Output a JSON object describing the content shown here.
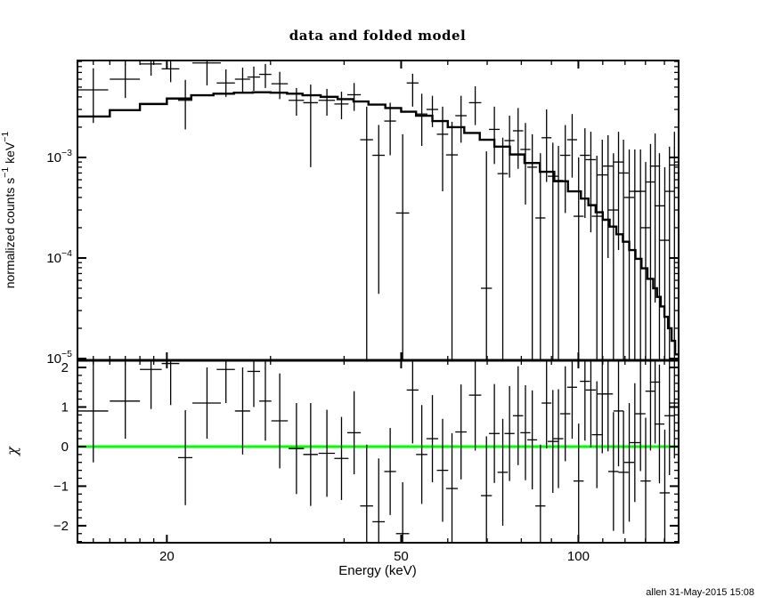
{
  "footer": {
    "watermark": "allen 31-May-2015 15:08"
  },
  "colors": {
    "foreground": "#000000",
    "background": "#ffffff",
    "model_line": "#000000",
    "zero_line_green": "#00ff00"
  },
  "chart_data": {
    "type": "line+scatter",
    "title": "data and folded model",
    "xlabel": "Energy (keV)",
    "xscale": "log",
    "xlim": [
      14.1,
      148
    ],
    "xticks": {
      "major": [
        {
          "v": 20,
          "label": "20"
        },
        {
          "v": 50,
          "label": "50"
        },
        {
          "v": 100,
          "label": "100"
        }
      ],
      "minor": [
        15,
        16,
        17,
        18,
        19,
        30,
        40,
        60,
        70,
        80,
        90,
        110,
        120,
        130,
        140
      ]
    },
    "panels": [
      {
        "name": "spectrum",
        "ylabel_parts": [
          {
            "t": "normalized counts s"
          },
          {
            "t": "−1",
            "sup": true
          },
          {
            "t": " keV"
          },
          {
            "t": "−1",
            "sup": true
          }
        ],
        "yscale": "log",
        "ylim": [
          9.6e-06,
          0.0092
        ],
        "yticks": {
          "major": [
            {
              "v": 0.001,
              "mant": "10",
              "exp": "−3"
            },
            {
              "v": 0.0001,
              "mant": "10",
              "exp": "−4"
            },
            {
              "v": 1e-05,
              "mant": "10",
              "exp": "−5"
            }
          ],
          "minor": [
            2e-05,
            3e-05,
            4e-05,
            5e-05,
            6e-05,
            7e-05,
            8e-05,
            9e-05,
            0.0002,
            0.0003,
            0.0004,
            0.0005,
            0.0006,
            0.0007,
            0.0008,
            0.0009,
            0.002,
            0.003,
            0.004,
            0.005,
            0.006,
            0.007,
            0.008,
            0.009
          ]
        },
        "model_step": {
          "edges": [
            14.1,
            16,
            18,
            20,
            22,
            24,
            26,
            28,
            30,
            32,
            34,
            36.5,
            39,
            41.5,
            44,
            47,
            50,
            53,
            56.5,
            60,
            64,
            68,
            72,
            76.5,
            81,
            86,
            91,
            96,
            101,
            104,
            107,
            110,
            113,
            116,
            119,
            122,
            125,
            128,
            131,
            134,
            136,
            138,
            140,
            142,
            144,
            146,
            148
          ],
          "values": [
            0.00255,
            0.00295,
            0.0034,
            0.00385,
            0.00415,
            0.0043,
            0.0044,
            0.00445,
            0.0044,
            0.0043,
            0.00415,
            0.004,
            0.0038,
            0.0036,
            0.00335,
            0.0031,
            0.00285,
            0.0026,
            0.0023,
            0.002,
            0.00175,
            0.0015,
            0.00128,
            0.00107,
            0.00088,
            0.00072,
            0.00058,
            0.00046,
            0.00039,
            0.000335,
            0.000285,
            0.00024,
            0.000205,
            0.000172,
            0.000145,
            0.00012,
            9.8e-05,
            7.9e-05,
            6.2e-05,
            5e-05,
            4.1e-05,
            3.3e-05,
            2.6e-05,
            2e-05,
            1.5e-05,
            1.1e-05
          ]
        }
      },
      {
        "name": "residuals",
        "ylabel": "χ",
        "yscale": "linear",
        "ylim": [
          -2.43,
          2.18
        ],
        "zero_line": 0,
        "yticks": {
          "major": [
            {
              "v": 2,
              "label": "2"
            },
            {
              "v": 1,
              "label": "1"
            },
            {
              "v": 0,
              "label": "0"
            },
            {
              "v": -1,
              "label": "−1"
            },
            {
              "v": -2,
              "label": "−2"
            }
          ],
          "minor": [
            -2.4,
            -2.2,
            -1.8,
            -1.6,
            -1.4,
            -1.2,
            -0.8,
            -0.6,
            -0.4,
            -0.2,
            0.2,
            0.4,
            0.6,
            0.8,
            1.2,
            1.4,
            1.6,
            1.8
          ]
        }
      }
    ],
    "bins": [
      {
        "e": 15.0,
        "ew": 0.9,
        "v": 0.0047,
        "vlo": 0.0022,
        "vhi": 0.0077,
        "chi": 0.9,
        "cerr": 1.3
      },
      {
        "e": 17.0,
        "ew": 1.0,
        "v": 0.006,
        "vlo": 0.0039,
        "vhi": 0.0085,
        "chi": 1.15,
        "cerr": 0.95
      },
      {
        "e": 18.8,
        "ew": 0.8,
        "v": 0.0085,
        "vlo": 0.0065,
        "vhi": 0.0094,
        "chi": 1.95,
        "cerr": 1.0
      },
      {
        "e": 20.3,
        "ew": 0.7,
        "v": 0.0076,
        "vlo": 0.0056,
        "vhi": 0.0094,
        "chi": 2.1,
        "cerr": 1.05
      },
      {
        "e": 21.5,
        "ew": 0.6,
        "v": 0.0037,
        "vlo": 0.0019,
        "vhi": 0.0059,
        "chi": -0.28,
        "cerr": 1.2
      },
      {
        "e": 23.4,
        "ew": 1.3,
        "v": 0.0087,
        "vlo": 0.0052,
        "vhi": 0.0094,
        "chi": 1.1,
        "cerr": 0.9
      },
      {
        "e": 25.2,
        "ew": 0.9,
        "v": 0.0055,
        "vlo": 0.004,
        "vhi": 0.0075,
        "chi": 1.95,
        "cerr": 0.85
      },
      {
        "e": 26.9,
        "ew": 0.8,
        "v": 0.006,
        "vlo": 0.0044,
        "vhi": 0.0078,
        "chi": 0.9,
        "cerr": 1.1
      },
      {
        "e": 28.1,
        "ew": 0.7,
        "v": 0.0063,
        "vlo": 0.0046,
        "vhi": 0.008,
        "chi": 1.9,
        "cerr": 0.9
      },
      {
        "e": 29.4,
        "ew": 0.7,
        "v": 0.0067,
        "vlo": 0.0049,
        "vhi": 0.0085,
        "chi": 1.15,
        "cerr": 1.0
      },
      {
        "e": 31.1,
        "ew": 1.0,
        "v": 0.0054,
        "vlo": 0.0038,
        "vhi": 0.0071,
        "chi": 0.65,
        "cerr": 1.2
      },
      {
        "e": 33.2,
        "ew": 1.0,
        "v": 0.0037,
        "vlo": 0.0026,
        "vhi": 0.0049,
        "chi": -0.05,
        "cerr": 1.15
      },
      {
        "e": 35.1,
        "ew": 1.0,
        "v": 0.0035,
        "vlo": 0.0008,
        "vhi": 0.0053,
        "chi": -0.2,
        "cerr": 1.3
      },
      {
        "e": 37.4,
        "ew": 1.2,
        "v": 0.0037,
        "vlo": 0.0026,
        "vhi": 0.0048,
        "chi": -0.17,
        "cerr": 1.1
      },
      {
        "e": 39.6,
        "ew": 1.1,
        "v": 0.0034,
        "vlo": 0.0024,
        "vhi": 0.0045,
        "chi": -0.3,
        "cerr": 1.05
      },
      {
        "e": 41.6,
        "ew": 1.1,
        "v": 0.0042,
        "vlo": 0.0029,
        "vhi": 0.0055,
        "chi": 0.35,
        "cerr": 1.05
      },
      {
        "e": 43.7,
        "ew": 1.1,
        "v": 0.0015,
        "vlo": 5e-06,
        "vhi": 0.0032,
        "chi": -1.5,
        "cerr": 1.55
      },
      {
        "e": 45.8,
        "ew": 1.1,
        "v": 0.00105,
        "vlo": 4.4e-05,
        "vhi": 0.0021,
        "chi": -1.9,
        "cerr": 1.6
      },
      {
        "e": 47.9,
        "ew": 1.1,
        "v": 0.0023,
        "vlo": 0.00105,
        "vhi": 0.0035,
        "chi": -0.63,
        "cerr": 1.1
      },
      {
        "e": 50.3,
        "ew": 1.3,
        "v": 0.00028,
        "vlo": 5e-06,
        "vhi": 0.0017,
        "chi": -2.2,
        "cerr": 1.3
      },
      {
        "e": 52.3,
        "ew": 1.2,
        "v": 0.0055,
        "vlo": 0.0032,
        "vhi": 0.0068,
        "chi": 1.43,
        "cerr": 1.35
      },
      {
        "e": 54.2,
        "ew": 1.2,
        "v": 0.0027,
        "vlo": 0.0013,
        "vhi": 0.0043,
        "chi": -0.2,
        "cerr": 1.25
      },
      {
        "e": 56.5,
        "ew": 1.3,
        "v": 0.003,
        "vlo": 0.002,
        "vhi": 0.0041,
        "chi": 0.2,
        "cerr": 1.1
      },
      {
        "e": 58.8,
        "ew": 1.3,
        "v": 0.0017,
        "vlo": 0.00046,
        "vhi": 0.0032,
        "chi": -0.6,
        "cerr": 1.3
      },
      {
        "e": 61.0,
        "ew": 1.4,
        "v": 0.00106,
        "vlo": 5e-06,
        "vhi": 0.00226,
        "chi": -1.06,
        "cerr": 1.4
      },
      {
        "e": 63.2,
        "ew": 1.4,
        "v": 0.0026,
        "vlo": 0.0014,
        "vhi": 0.0041,
        "chi": 0.37,
        "cerr": 1.2
      },
      {
        "e": 66.8,
        "ew": 1.6,
        "v": 0.0035,
        "vlo": 0.0021,
        "vhi": 0.0051,
        "chi": 1.3,
        "cerr": 1.4
      },
      {
        "e": 69.8,
        "ew": 1.5,
        "v": 5e-05,
        "vlo": 5e-06,
        "vhi": 0.00115,
        "chi": -1.24,
        "cerr": 1.5
      },
      {
        "e": 72.0,
        "ew": 1.5,
        "v": 0.0019,
        "vlo": 0.00086,
        "vhi": 0.0032,
        "chi": 0.33,
        "cerr": 1.25
      },
      {
        "e": 74.4,
        "ew": 1.5,
        "v": 0.00069,
        "vlo": 5e-06,
        "vhi": 0.00157,
        "chi": -0.65,
        "cerr": 1.35
      },
      {
        "e": 76.4,
        "ew": 1.5,
        "v": 0.00147,
        "vlo": 0.00063,
        "vhi": 0.0026,
        "chi": 0.33,
        "cerr": 1.2
      },
      {
        "e": 79.0,
        "ew": 1.6,
        "v": 0.00184,
        "vlo": 0.00077,
        "vhi": 0.0031,
        "chi": 0.78,
        "cerr": 1.25
      },
      {
        "e": 81.3,
        "ew": 1.6,
        "v": 0.0012,
        "vlo": 0.00034,
        "vhi": 0.0022,
        "chi": 0.35,
        "cerr": 1.2
      },
      {
        "e": 83.5,
        "ew": 1.6,
        "v": 0.0008,
        "vlo": 5e-06,
        "vhi": 0.0017,
        "chi": 0.17,
        "cerr": 1.25
      },
      {
        "e": 86.2,
        "ew": 1.7,
        "v": 0.00025,
        "vlo": 5e-06,
        "vhi": 0.0011,
        "chi": -1.5,
        "cerr": 1.55
      },
      {
        "e": 88.3,
        "ew": 1.7,
        "v": 0.00157,
        "vlo": 0.00057,
        "vhi": 0.003,
        "chi": 1.1,
        "cerr": 1.15
      },
      {
        "e": 90.5,
        "ew": 1.8,
        "v": 0.00065,
        "vlo": 5e-06,
        "vhi": 0.0014,
        "chi": 0.13,
        "cerr": 1.3
      },
      {
        "e": 92.5,
        "ew": 1.8,
        "v": 0.00059,
        "vlo": 5e-06,
        "vhi": 0.0013,
        "chi": 0.2,
        "cerr": 1.25
      },
      {
        "e": 95.0,
        "ew": 1.9,
        "v": 0.00105,
        "vlo": 0.00028,
        "vhi": 0.0021,
        "chi": 0.83,
        "cerr": 1.2
      },
      {
        "e": 97.6,
        "ew": 1.9,
        "v": 0.0015,
        "vlo": 0.00063,
        "vhi": 0.0027,
        "chi": 1.5,
        "cerr": 1.3
      },
      {
        "e": 100.1,
        "ew": 2.0,
        "v": 0.00026,
        "vlo": 5e-06,
        "vhi": 0.001,
        "chi": -0.87,
        "cerr": 1.45
      },
      {
        "e": 102.6,
        "ew": 2.0,
        "v": 0.00105,
        "vlo": 0.00025,
        "vhi": 0.00195,
        "chi": 1.65,
        "cerr": 1.5
      },
      {
        "e": 105.0,
        "ew": 2.1,
        "v": 0.00095,
        "vlo": 0.00018,
        "vhi": 0.0018,
        "chi": 1.43,
        "cerr": 1.45
      },
      {
        "e": 107.5,
        "ew": 2.1,
        "v": 0.00026,
        "vlo": 5e-06,
        "vhi": 0.00104,
        "chi": 0.3,
        "cerr": 1.35
      },
      {
        "e": 109.8,
        "ew": 2.2,
        "v": 0.00067,
        "vlo": 5e-06,
        "vhi": 0.0015,
        "chi": 1.33,
        "cerr": 1.5
      },
      {
        "e": 112.3,
        "ew": 2.2,
        "v": 0.00082,
        "vlo": 0.0001,
        "vhi": 0.00166,
        "chi": 1.33,
        "cerr": 1.45
      },
      {
        "e": 114.7,
        "ew": 2.3,
        "v": 0.0003,
        "vlo": 5e-06,
        "vhi": 0.0011,
        "chi": -0.63,
        "cerr": 1.5
      },
      {
        "e": 117.0,
        "ew": 2.3,
        "v": 0.0009,
        "vlo": 0.00012,
        "vhi": 0.0018,
        "chi": 0.9,
        "cerr": 1.4
      },
      {
        "e": 119.3,
        "ew": 2.4,
        "v": 0.0007,
        "vlo": 5e-06,
        "vhi": 0.0015,
        "chi": -0.65,
        "cerr": 1.55
      },
      {
        "e": 122.0,
        "ew": 2.4,
        "v": 0.0004,
        "vlo": 5e-06,
        "vhi": 0.0012,
        "chi": -0.4,
        "cerr": 1.5
      },
      {
        "e": 124.7,
        "ew": 2.5,
        "v": 0.00046,
        "vlo": 5e-06,
        "vhi": 0.0012,
        "chi": 0.1,
        "cerr": 1.5
      },
      {
        "e": 127.5,
        "ew": 2.5,
        "v": 0.00046,
        "vlo": 5e-06,
        "vhi": 0.0012,
        "chi": 0.83,
        "cerr": 1.45
      },
      {
        "e": 130.1,
        "ew": 2.6,
        "v": 0.0002,
        "vlo": 5e-06,
        "vhi": 0.0009,
        "chi": -0.87,
        "cerr": 1.6
      },
      {
        "e": 132.6,
        "ew": 2.6,
        "v": 0.00057,
        "vlo": 5e-06,
        "vhi": 0.00136,
        "chi": 1.4,
        "cerr": 1.5
      },
      {
        "e": 135.0,
        "ew": 2.7,
        "v": 0.00082,
        "vlo": 3.6e-05,
        "vhi": 0.00173,
        "chi": 1.63,
        "cerr": 1.55
      },
      {
        "e": 137.3,
        "ew": 2.7,
        "v": 0.00033,
        "vlo": 5e-06,
        "vhi": 0.0011,
        "chi": 0.57,
        "cerr": 1.5
      },
      {
        "e": 140.2,
        "ew": 2.8,
        "v": 0.00015,
        "vlo": 5e-06,
        "vhi": 0.0008,
        "chi": -1.17,
        "cerr": 1.6
      },
      {
        "e": 142.8,
        "ew": 2.8,
        "v": 0.00046,
        "vlo": 5e-06,
        "vhi": 0.00128,
        "chi": 0.78,
        "cerr": 1.5
      },
      {
        "e": 145.6,
        "ew": 2.9,
        "v": 0.00084,
        "vlo": 5e-06,
        "vhi": 0.0018,
        "chi": 1.1,
        "cerr": 1.4
      }
    ]
  }
}
